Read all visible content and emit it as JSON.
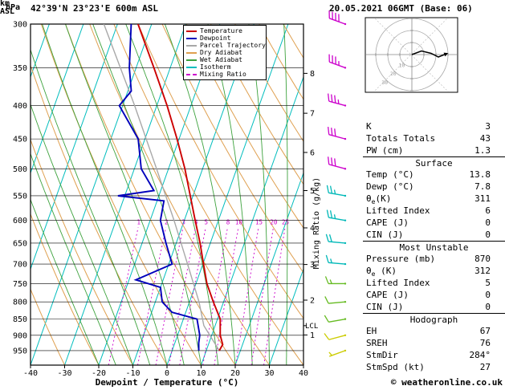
{
  "header": {
    "left_unit": "hPa",
    "station": "42°39'N 23°23'E 600m ASL",
    "datetime": "20.05.2021 06GMT (Base: 06)",
    "km_axis_label_1": "km",
    "km_axis_label_2": "ASL"
  },
  "legend": {
    "items": [
      {
        "label": "Temperature",
        "color": "#cc0000",
        "dash": false
      },
      {
        "label": "Dewpoint",
        "color": "#0000bb",
        "dash": false
      },
      {
        "label": "Parcel Trajectory",
        "color": "#a8a8a8",
        "dash": false
      },
      {
        "label": "Dry Adiabat",
        "color": "#dfa050",
        "dash": false
      },
      {
        "label": "Wet Adiabat",
        "color": "#3da23d",
        "dash": false
      },
      {
        "label": "Isotherm",
        "color": "#00bdbd",
        "dash": false
      },
      {
        "label": "Mixing Ratio",
        "color": "#cc00cc",
        "dash": true
      }
    ]
  },
  "axes": {
    "pressure_ticks": [
      300,
      350,
      400,
      450,
      500,
      550,
      600,
      650,
      700,
      750,
      800,
      850,
      900,
      950
    ],
    "temp_ticks": [
      -40,
      -30,
      -20,
      -10,
      0,
      10,
      20,
      30,
      40
    ],
    "km_ticks": [
      1,
      2,
      3,
      4,
      5,
      6,
      7,
      8
    ],
    "x_title": "Dewpoint / Temperature (°C)",
    "mixing_ratio_axis_title": "Mixing Ratio (g/kg)",
    "lcl_label": "LCL",
    "mixing_ratio_values": [
      1,
      2,
      3,
      4,
      5,
      8,
      10,
      15,
      20,
      25
    ]
  },
  "style": {
    "temperature": "#cc0000",
    "dewpoint": "#0000bb",
    "parcel": "#a8a8a8",
    "dry_adiabat": "#dfa050",
    "wet_adiabat": "#3da23d",
    "isotherm": "#00bdbd",
    "mixing_ratio": "#cc00cc",
    "grid": "#000000",
    "barb_upper": "#cc00cc",
    "barb_mid": "#00b8b8",
    "barb_low": "#66bb22",
    "barb_sfc": "#cccc00"
  },
  "chart_data": {
    "type": "skewt_log_p_sounding",
    "pressure_range_hpa": [
      300,
      1000
    ],
    "temp_axis_range_c": [
      -40,
      40
    ],
    "temperature_profile_p_t": [
      [
        950,
        13.8
      ],
      [
        930,
        14.2
      ],
      [
        900,
        12.5
      ],
      [
        850,
        10.8
      ],
      [
        800,
        7.0
      ],
      [
        750,
        3.2
      ],
      [
        700,
        0.2
      ],
      [
        650,
        -3.0
      ],
      [
        600,
        -6.8
      ],
      [
        550,
        -10.8
      ],
      [
        500,
        -15.2
      ],
      [
        450,
        -20.6
      ],
      [
        400,
        -27.0
      ],
      [
        350,
        -34.8
      ],
      [
        300,
        -44.0
      ]
    ],
    "dewpoint_profile_p_t": [
      [
        950,
        7.8
      ],
      [
        925,
        7.0
      ],
      [
        900,
        6.5
      ],
      [
        850,
        4.0
      ],
      [
        830,
        -4.0
      ],
      [
        800,
        -8.0
      ],
      [
        760,
        -10.0
      ],
      [
        740,
        -18.0
      ],
      [
        700,
        -9.0
      ],
      [
        650,
        -13.0
      ],
      [
        600,
        -17.0
      ],
      [
        560,
        -18.0
      ],
      [
        550,
        -32.0
      ],
      [
        540,
        -22.0
      ],
      [
        500,
        -28.0
      ],
      [
        450,
        -32.0
      ],
      [
        400,
        -41.0
      ],
      [
        380,
        -39.0
      ],
      [
        350,
        -42.0
      ],
      [
        300,
        -46.0
      ]
    ],
    "parcel_profile_p_t": [
      [
        950,
        13.8
      ],
      [
        870,
        6.7
      ],
      [
        800,
        2.8
      ],
      [
        700,
        -4.5
      ],
      [
        600,
        -13.0
      ],
      [
        500,
        -23.5
      ],
      [
        400,
        -36.5
      ],
      [
        300,
        -54.0
      ]
    ],
    "lcl_pressure_hpa": 870,
    "km_asl_pressures": {
      "1": 899,
      "2": 795,
      "3": 701,
      "4": 616,
      "5": 540,
      "6": 472,
      "7": 411,
      "8": 357
    },
    "wind_barbs": [
      {
        "p": 300,
        "speed_kt": 40,
        "dir_deg": 290,
        "color": "#cc00cc"
      },
      {
        "p": 350,
        "speed_kt": 35,
        "dir_deg": 290,
        "color": "#cc00cc"
      },
      {
        "p": 400,
        "speed_kt": 35,
        "dir_deg": 285,
        "color": "#cc00cc"
      },
      {
        "p": 450,
        "speed_kt": 30,
        "dir_deg": 285,
        "color": "#cc00cc"
      },
      {
        "p": 500,
        "speed_kt": 30,
        "dir_deg": 285,
        "color": "#cc00cc"
      },
      {
        "p": 550,
        "speed_kt": 25,
        "dir_deg": 280,
        "color": "#00b8b8"
      },
      {
        "p": 600,
        "speed_kt": 25,
        "dir_deg": 280,
        "color": "#00b8b8"
      },
      {
        "p": 650,
        "speed_kt": 20,
        "dir_deg": 275,
        "color": "#00b8b8"
      },
      {
        "p": 700,
        "speed_kt": 15,
        "dir_deg": 275,
        "color": "#00b8b8"
      },
      {
        "p": 750,
        "speed_kt": 15,
        "dir_deg": 270,
        "color": "#66bb22"
      },
      {
        "p": 800,
        "speed_kt": 10,
        "dir_deg": 265,
        "color": "#66bb22"
      },
      {
        "p": 850,
        "speed_kt": 10,
        "dir_deg": 260,
        "color": "#66bb22"
      },
      {
        "p": 900,
        "speed_kt": 10,
        "dir_deg": 255,
        "color": "#cccc00"
      },
      {
        "p": 950,
        "speed_kt": 5,
        "dir_deg": 250,
        "color": "#cccc00"
      }
    ]
  },
  "hodograph": {
    "unit_label": "kt",
    "ring_interval_kt": 10,
    "ring_labels": [
      10,
      20,
      30
    ],
    "trace_uv_kt": [
      [
        0,
        0
      ],
      [
        8,
        -3
      ],
      [
        16,
        -1
      ],
      [
        22,
        2
      ],
      [
        27,
        0
      ]
    ]
  },
  "panel": {
    "sections": [
      {
        "header": "",
        "rows": [
          [
            "K",
            "3"
          ],
          [
            "Totals Totals",
            "43"
          ],
          [
            "PW (cm)",
            "1.3"
          ]
        ]
      },
      {
        "header": "Surface",
        "rows": [
          [
            "Temp (°C)",
            "13.8"
          ],
          [
            "Dewp (°C)",
            "7.8"
          ],
          [
            "θe(K)",
            "311"
          ],
          [
            "Lifted Index",
            "6"
          ],
          [
            "CAPE (J)",
            "0"
          ],
          [
            "CIN (J)",
            "0"
          ]
        ]
      },
      {
        "header": "Most Unstable",
        "rows": [
          [
            "Pressure (mb)",
            "870"
          ],
          [
            "θe (K)",
            "312"
          ],
          [
            "Lifted Index",
            "5"
          ],
          [
            "CAPE (J)",
            "0"
          ],
          [
            "CIN (J)",
            "0"
          ]
        ]
      },
      {
        "header": "Hodograph",
        "rows": [
          [
            "EH",
            "67"
          ],
          [
            "SREH",
            "76"
          ],
          [
            "StmDir",
            "284°"
          ],
          [
            "StmSpd (kt)",
            "27"
          ]
        ]
      }
    ]
  },
  "footer": {
    "copyright": "© weatheronline.co.uk"
  }
}
